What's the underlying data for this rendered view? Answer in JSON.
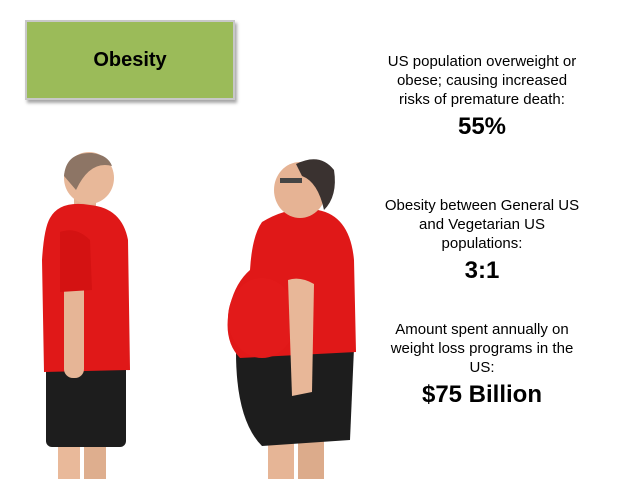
{
  "title": "Obesity",
  "stats": [
    {
      "label": "US population overweight or obese; causing increased risks of premature death:",
      "value": "55%"
    },
    {
      "label": "Obesity between General US and Vegetarian US populations:",
      "value": "3:1"
    },
    {
      "label": "Amount spent annually on weight loss programs in the US:",
      "value": "$75 Billion"
    }
  ]
}
